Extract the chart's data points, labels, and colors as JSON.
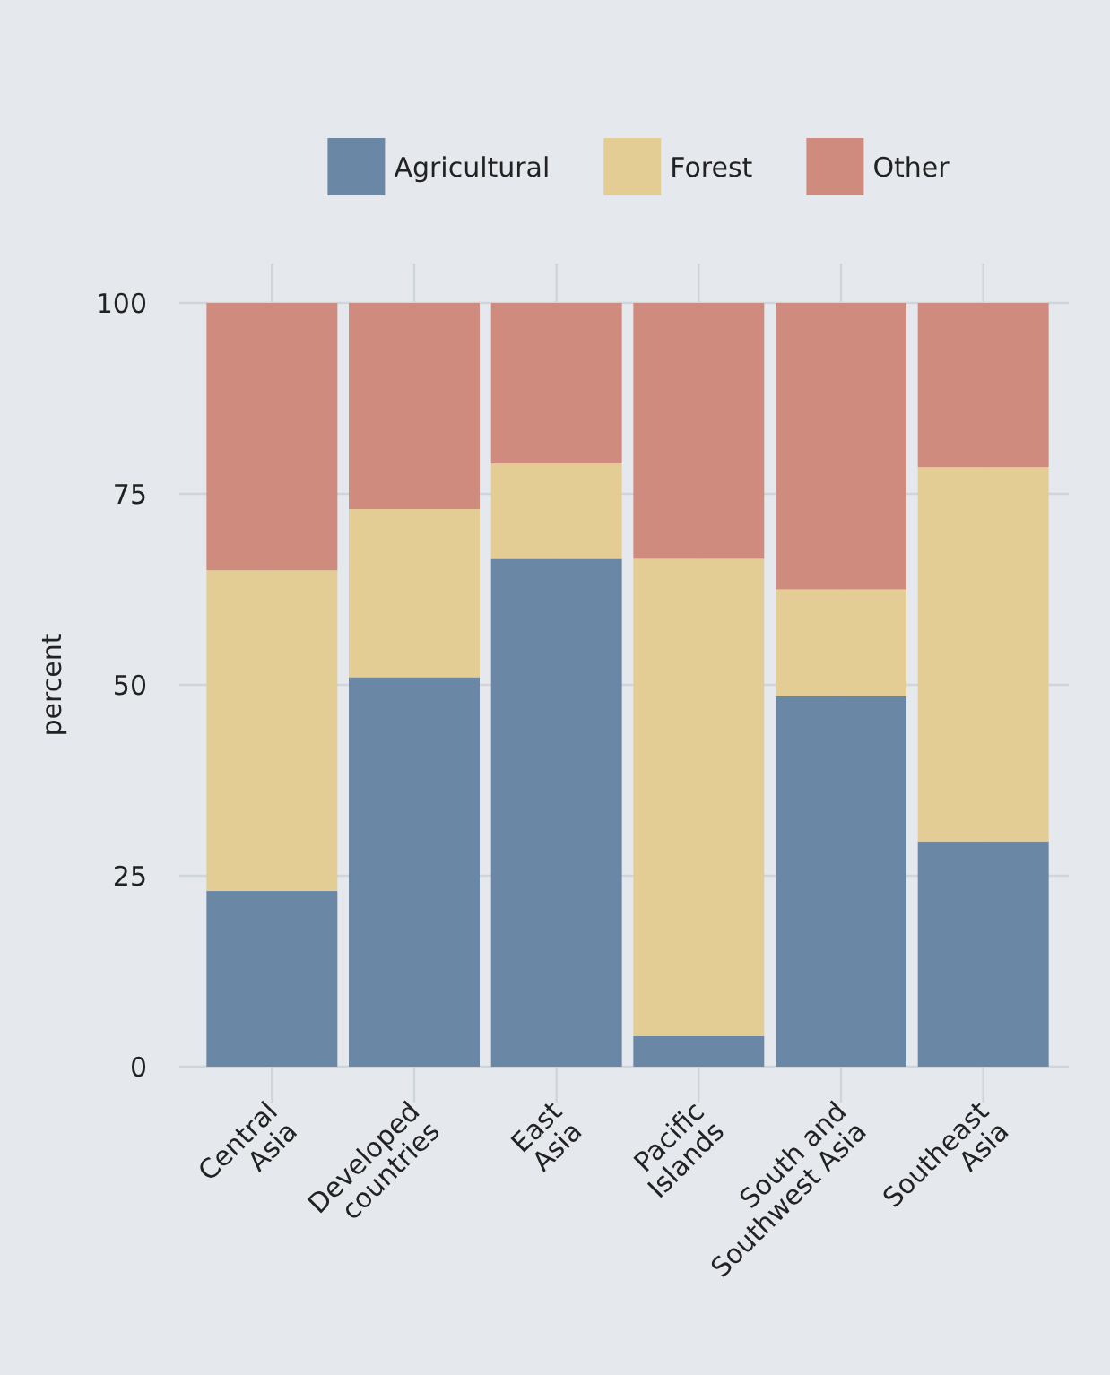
{
  "chart_data": {
    "type": "bar",
    "stacked": true,
    "ylabel": "percent",
    "categories": [
      "Central Asia",
      "Developed countries",
      "East Asia",
      "Pacific Islands",
      "South and Southwest Asia",
      "Southeast Asia"
    ],
    "series": [
      {
        "name": "Agricultural",
        "color": "#6b87a6",
        "values": [
          23,
          51,
          66.5,
          4,
          48.5,
          29.5
        ]
      },
      {
        "name": "Forest",
        "color": "#e4cd94",
        "values": [
          42,
          22,
          12.5,
          62.5,
          14,
          49
        ]
      },
      {
        "name": "Other",
        "color": "#cf8c7e",
        "values": [
          35,
          27,
          21,
          33.5,
          37.5,
          21.5
        ]
      }
    ],
    "ylim": [
      0,
      100
    ],
    "yticks": [
      0,
      25,
      50,
      75,
      100
    ],
    "grid": true,
    "legend": "top"
  }
}
